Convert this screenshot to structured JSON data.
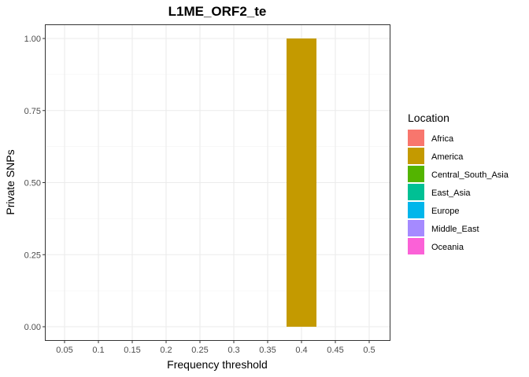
{
  "chart_data": {
    "type": "bar",
    "title": "L1ME_ORF2_te",
    "xlabel": "Frequency threshold",
    "ylabel": "Private SNPs",
    "x_ticks": [
      "0.05",
      "0.1",
      "0.15",
      "0.2",
      "0.25",
      "0.3",
      "0.35",
      "0.4",
      "0.45",
      "0.5"
    ],
    "y_ticks": [
      "0.00",
      "0.25",
      "0.50",
      "0.75",
      "1.00"
    ],
    "ylim": [
      0,
      1
    ],
    "grid": true,
    "legend_placement": "right",
    "legend_title": "Location",
    "legend": [
      {
        "name": "Africa",
        "color": "#F8766D"
      },
      {
        "name": "America",
        "color": "#C49A00"
      },
      {
        "name": "Central_South_Asia",
        "color": "#53B400"
      },
      {
        "name": "East_Asia",
        "color": "#00C094"
      },
      {
        "name": "Europe",
        "color": "#00B6EB"
      },
      {
        "name": "Middle_East",
        "color": "#A58AFF"
      },
      {
        "name": "Oceania",
        "color": "#FB61D7"
      }
    ],
    "bars": [
      {
        "x": "0.4",
        "series": "America",
        "value": 1.0
      }
    ]
  }
}
